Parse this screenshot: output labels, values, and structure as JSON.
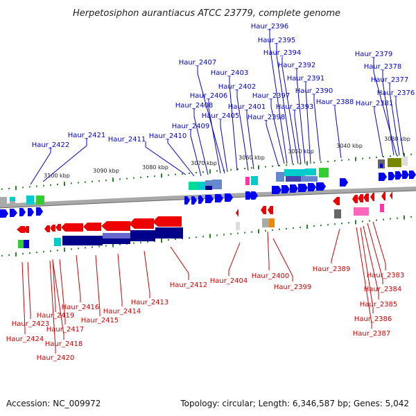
{
  "title": "Herpetosiphon aurantiacus ATCC 23779, complete genome",
  "footer": {
    "accession": "Accession: NC_009972",
    "topology": "Topology: circular; Length: 6,346,587 bp; Genes: 5,042"
  },
  "ticks": [
    "3100 kbp",
    "3090 kbp",
    "3080 kbp",
    "3070 kbp",
    "3060 kbp",
    "3050 kbp",
    "3040 kbp",
    "3030 kbp"
  ],
  "colors": {
    "forward_gene": "#0000ee",
    "reverse_gene": "#ee0000",
    "forward_label": "#0000cc",
    "reverse_label": "#cc0000",
    "backbone": "#888888",
    "scale_major": "#228822"
  },
  "forward_labels": [
    "Haur_2396",
    "Haur_2395",
    "Haur_2394",
    "Haur_2379",
    "Haur_2407",
    "Haur_2392",
    "Haur_2378",
    "Haur_2403",
    "Haur_2391",
    "Haur_2377",
    "Haur_2402",
    "Haur_2390",
    "Haur_2376",
    "Haur_2406",
    "Haur_2397",
    "Haur_2401",
    "Haur_2388",
    "Haur_2381",
    "Haur_2408",
    "Haur_2393",
    "Haur_2405",
    "Haur_2398",
    "Haur_2409",
    "Haur_2421",
    "Haur_2410",
    "Haur_2411",
    "Haur_2422"
  ],
  "reverse_labels": [
    "Haur_2389",
    "Haur_2400",
    "Haur_2383",
    "Haur_2412",
    "Haur_2404",
    "Haur_2399",
    "Haur_2384",
    "Haur_2413",
    "Haur_2385",
    "Haur_2416",
    "Haur_2414",
    "Haur_2419",
    "Haur_2386",
    "Haur_2415",
    "Haur_2423",
    "Haur_2417",
    "Haur_2387",
    "Haur_2424",
    "Haur_2418",
    "Haur_2420"
  ]
}
